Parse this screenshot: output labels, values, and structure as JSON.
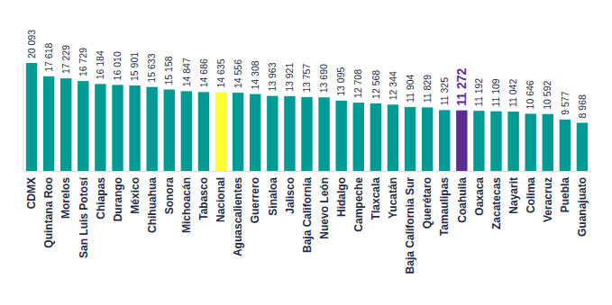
{
  "chart_data": {
    "type": "bar",
    "categories": [
      "CDMX",
      "Quintana Roo",
      "Morelos",
      "San Luis Potosí",
      "Chiapas",
      "Durango",
      "México",
      "Chihuahua",
      "Sonora",
      "Michoacán",
      "Tabasco",
      "Nacional",
      "Aguascalientes",
      "Guerrero",
      "Sinaloa",
      "Jalisco",
      "Baja California",
      "Nuevo León",
      "Hidalgo",
      "Campeche",
      "Tlaxcala",
      "Yucatán",
      "Baja California Sur",
      "Querétaro",
      "Tamaulipas",
      "Coahuila",
      "Oaxaca",
      "Zacatecas",
      "Nayarit",
      "Colima",
      "Veracruz",
      "Puebla",
      "Guanajuato"
    ],
    "values": [
      20093,
      17618,
      17229,
      16729,
      16184,
      16010,
      15901,
      15633,
      15158,
      14847,
      14686,
      14635,
      14556,
      14308,
      13963,
      13921,
      13757,
      13690,
      13095,
      12708,
      12568,
      12344,
      11904,
      11829,
      11325,
      11272,
      11192,
      11109,
      11042,
      10646,
      10592,
      9577,
      8968
    ],
    "value_labels": [
      "20 093",
      "17 618",
      "17 229",
      "16 729",
      "16 184",
      "16 010",
      "15 901",
      "15 633",
      "15 158",
      "14 847",
      "14 686",
      "14 635",
      "14 556",
      "14 308",
      "13 963",
      "13 921",
      "13 757",
      "13 690",
      "13 095",
      "12 708",
      "12 568",
      "12 344",
      "11 904",
      "11 829",
      "11 325",
      "11 272",
      "11 192",
      "11 109",
      "11 042",
      "10 646",
      "10 592",
      "9 577",
      "8 968"
    ],
    "colors": [
      "#009b95",
      "#009b95",
      "#009b95",
      "#009b95",
      "#009b95",
      "#009b95",
      "#009b95",
      "#009b95",
      "#009b95",
      "#009b95",
      "#009b95",
      "#ffff33",
      "#009b95",
      "#009b95",
      "#009b95",
      "#009b95",
      "#009b95",
      "#009b95",
      "#009b95",
      "#009b95",
      "#009b95",
      "#009b95",
      "#009b95",
      "#009b95",
      "#009b95",
      "#5c2d91",
      "#009b95",
      "#009b95",
      "#009b95",
      "#009b95",
      "#009b95",
      "#009b95",
      "#009b95"
    ],
    "ylim": [
      0,
      20093
    ],
    "yticks": [],
    "data_labels": true,
    "tick_labels": "x",
    "grid": false
  }
}
